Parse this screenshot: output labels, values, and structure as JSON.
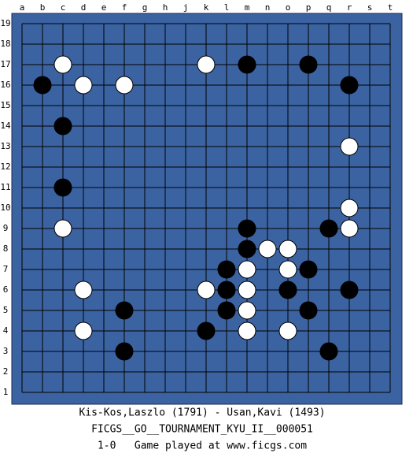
{
  "board": {
    "columns": [
      "a",
      "b",
      "c",
      "d",
      "e",
      "f",
      "g",
      "h",
      "j",
      "k",
      "l",
      "m",
      "n",
      "o",
      "p",
      "q",
      "r",
      "s",
      "t"
    ],
    "rows": [
      19,
      18,
      17,
      16,
      15,
      14,
      13,
      12,
      11,
      10,
      9,
      8,
      7,
      6,
      5,
      4,
      3,
      2,
      1
    ],
    "stones": [
      {
        "color": "white",
        "col": "c",
        "row": 17
      },
      {
        "color": "white",
        "col": "d",
        "row": 16
      },
      {
        "color": "white",
        "col": "f",
        "row": 16
      },
      {
        "color": "white",
        "col": "k",
        "row": 17
      },
      {
        "color": "white",
        "col": "r",
        "row": 13
      },
      {
        "color": "white",
        "col": "r",
        "row": 10
      },
      {
        "color": "white",
        "col": "r",
        "row": 9
      },
      {
        "color": "white",
        "col": "c",
        "row": 9
      },
      {
        "color": "white",
        "col": "n",
        "row": 8
      },
      {
        "color": "white",
        "col": "o",
        "row": 8
      },
      {
        "color": "white",
        "col": "m",
        "row": 7
      },
      {
        "color": "white",
        "col": "o",
        "row": 7
      },
      {
        "color": "white",
        "col": "d",
        "row": 6
      },
      {
        "color": "white",
        "col": "k",
        "row": 6
      },
      {
        "color": "white",
        "col": "m",
        "row": 6
      },
      {
        "color": "white",
        "col": "m",
        "row": 5
      },
      {
        "color": "white",
        "col": "d",
        "row": 4
      },
      {
        "color": "white",
        "col": "m",
        "row": 4
      },
      {
        "color": "white",
        "col": "o",
        "row": 4
      },
      {
        "color": "black",
        "col": "b",
        "row": 16
      },
      {
        "color": "black",
        "col": "c",
        "row": 14
      },
      {
        "color": "black",
        "col": "c",
        "row": 11
      },
      {
        "color": "black",
        "col": "m",
        "row": 17
      },
      {
        "color": "black",
        "col": "p",
        "row": 17
      },
      {
        "color": "black",
        "col": "r",
        "row": 16
      },
      {
        "color": "black",
        "col": "m",
        "row": 9
      },
      {
        "color": "black",
        "col": "q",
        "row": 9
      },
      {
        "color": "black",
        "col": "m",
        "row": 8
      },
      {
        "color": "black",
        "col": "l",
        "row": 7
      },
      {
        "color": "black",
        "col": "p",
        "row": 7
      },
      {
        "color": "black",
        "col": "l",
        "row": 6
      },
      {
        "color": "black",
        "col": "o",
        "row": 6
      },
      {
        "color": "black",
        "col": "r",
        "row": 6
      },
      {
        "color": "black",
        "col": "f",
        "row": 5
      },
      {
        "color": "black",
        "col": "l",
        "row": 5
      },
      {
        "color": "black",
        "col": "p",
        "row": 5
      },
      {
        "color": "black",
        "col": "k",
        "row": 4
      },
      {
        "color": "black",
        "col": "f",
        "row": 3
      },
      {
        "color": "black",
        "col": "q",
        "row": 3
      }
    ]
  },
  "caption": {
    "players": "Kis-Kos,Laszlo (1791) - Usan,Kavi (1493)",
    "event": "FICGS__GO__TOURNAMENT_KYU_II__000051",
    "result": "1-0   Game played at www.ficgs.com"
  }
}
